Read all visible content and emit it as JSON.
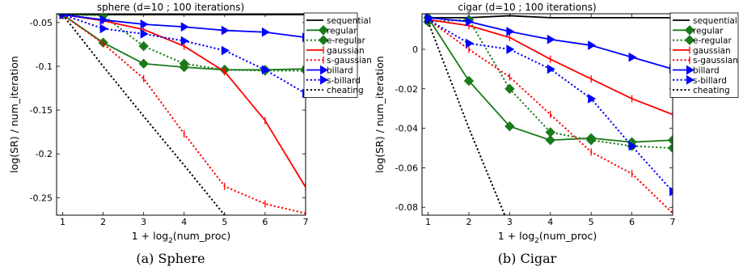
{
  "chart_data": [
    {
      "type": "line",
      "title": "sphere (d=10 ; 100 iterations)",
      "xlabel_prefix": "1 + log",
      "xlabel_sub": "2",
      "xlabel_suffix": "(num_proc)",
      "ylabel": "log(SR) / num_iteration",
      "caption": "(a) Sphere",
      "xlim": [
        0.85,
        7
      ],
      "ylim": [
        -0.27,
        -0.04
      ],
      "xticks": [
        1,
        2,
        3,
        4,
        5,
        6,
        7
      ],
      "xtick_labels": [
        "1",
        "2",
        "3",
        "4",
        "5",
        "6",
        "7"
      ],
      "yticks": [
        -0.05,
        -0.1,
        -0.15,
        -0.2,
        -0.25
      ],
      "ytick_labels": [
        "-0.05",
        "-0.1",
        "-0.15",
        "-0.2",
        "-0.25"
      ],
      "legend_position": "top-right",
      "series": [
        {
          "name": "sequential",
          "color": "#000000",
          "dash": "solid",
          "marker": "none",
          "x": [
            1,
            2,
            3,
            4,
            5,
            6,
            7
          ],
          "y": [
            -0.041,
            -0.041,
            -0.041,
            -0.041,
            -0.041,
            -0.041,
            -0.041
          ]
        },
        {
          "name": "regular",
          "color": "#1a7a1a",
          "dash": "solid",
          "marker": "diamond",
          "x": [
            1,
            2,
            3,
            4,
            5,
            6,
            7
          ],
          "y": [
            -0.041,
            -0.073,
            -0.097,
            -0.101,
            -0.104,
            -0.104,
            -0.103
          ]
        },
        {
          "name": "e-regular",
          "color": "#1a7a1a",
          "dash": "dotted",
          "marker": "diamond",
          "x": [
            1,
            2,
            3,
            4,
            5,
            6,
            7
          ],
          "y": [
            -0.041,
            -0.042,
            -0.077,
            -0.097,
            -0.104,
            -0.105,
            -0.105
          ]
        },
        {
          "name": "gaussian",
          "color": "#ff0000",
          "dash": "solid",
          "marker": "tick",
          "x": [
            1,
            2,
            3,
            4,
            5,
            6,
            7
          ],
          "y": [
            -0.041,
            -0.048,
            -0.058,
            -0.077,
            -0.106,
            -0.162,
            -0.238
          ]
        },
        {
          "name": "s-gaussian",
          "color": "#ff0000",
          "dash": "dotted",
          "marker": "tick",
          "x": [
            1,
            2,
            3,
            4,
            5,
            6,
            7
          ],
          "y": [
            -0.041,
            -0.074,
            -0.114,
            -0.177,
            -0.237,
            -0.257,
            -0.268
          ]
        },
        {
          "name": "billard",
          "color": "#0000ff",
          "dash": "solid",
          "marker": "triangle",
          "x": [
            1,
            2,
            3,
            4,
            5,
            6,
            7
          ],
          "y": [
            -0.041,
            -0.047,
            -0.052,
            -0.055,
            -0.059,
            -0.061,
            -0.067
          ]
        },
        {
          "name": "s-billard",
          "color": "#0000ff",
          "dash": "dotted",
          "marker": "triangle",
          "x": [
            1,
            2,
            3,
            4,
            5,
            6,
            7
          ],
          "y": [
            -0.041,
            -0.057,
            -0.063,
            -0.071,
            -0.082,
            -0.104,
            -0.131
          ]
        },
        {
          "name": "cheating",
          "color": "#000000",
          "dash": "dotted",
          "marker": "none",
          "x": [
            1,
            2,
            3,
            4,
            5
          ],
          "y": [
            -0.041,
            -0.1,
            -0.157,
            -0.213,
            -0.27
          ]
        }
      ]
    },
    {
      "type": "line",
      "title": "cigar (d=10 ; 100 iterations)",
      "xlabel_prefix": "1 + log",
      "xlabel_sub": "2",
      "xlabel_suffix": "(num_proc)",
      "ylabel": "log(SR) / num_iteration",
      "caption": "(b) Cigar",
      "xlim": [
        0.85,
        7
      ],
      "ylim": [
        -0.084,
        0.018
      ],
      "xticks": [
        1,
        2,
        3,
        4,
        5,
        6,
        7
      ],
      "xtick_labels": [
        "1",
        "2",
        "3",
        "4",
        "5",
        "6",
        "7"
      ],
      "yticks": [
        0,
        -0.02,
        -0.04,
        -0.06,
        -0.08
      ],
      "ytick_labels": [
        "0",
        "-0.02",
        "-0.04",
        "-0.06",
        "-0.08"
      ],
      "legend_position": "top-right",
      "series": [
        {
          "name": "sequential",
          "color": "#000000",
          "dash": "solid",
          "marker": "none",
          "x": [
            1,
            2,
            3,
            4,
            5,
            6,
            7
          ],
          "y": [
            0.016,
            0.016,
            0.017,
            0.016,
            0.016,
            0.016,
            0.016
          ]
        },
        {
          "name": "regular",
          "color": "#1a7a1a",
          "dash": "solid",
          "marker": "diamond",
          "x": [
            1,
            2,
            3,
            4,
            5,
            6,
            7
          ],
          "y": [
            0.016,
            -0.016,
            -0.039,
            -0.046,
            -0.045,
            -0.047,
            -0.046
          ]
        },
        {
          "name": "e-regular",
          "color": "#1a7a1a",
          "dash": "dotted",
          "marker": "diamond",
          "x": [
            1,
            2,
            3,
            4,
            5,
            6,
            7
          ],
          "y": [
            0.014,
            0.015,
            -0.02,
            -0.042,
            -0.046,
            -0.049,
            -0.05
          ]
        },
        {
          "name": "gaussian",
          "color": "#ff0000",
          "dash": "solid",
          "marker": "tick",
          "x": [
            1,
            2,
            3,
            4,
            5,
            6,
            7
          ],
          "y": [
            0.015,
            0.012,
            0.006,
            -0.005,
            -0.015,
            -0.025,
            -0.033
          ]
        },
        {
          "name": "s-gaussian",
          "color": "#ff0000",
          "dash": "dotted",
          "marker": "tick",
          "x": [
            1,
            2,
            3,
            4,
            5,
            6,
            7
          ],
          "y": [
            0.015,
            0.0,
            -0.014,
            -0.033,
            -0.052,
            -0.063,
            -0.083
          ]
        },
        {
          "name": "billard",
          "color": "#0000ff",
          "dash": "solid",
          "marker": "triangle",
          "x": [
            1,
            2,
            3,
            4,
            5,
            6,
            7
          ],
          "y": [
            0.016,
            0.014,
            0.009,
            0.005,
            0.002,
            -0.004,
            -0.01
          ]
        },
        {
          "name": "s-billard",
          "color": "#0000ff",
          "dash": "dotted",
          "marker": "triangle",
          "x": [
            1,
            2,
            3,
            4,
            5,
            6,
            7
          ],
          "y": [
            0.015,
            0.003,
            0.0,
            -0.01,
            -0.025,
            -0.049,
            -0.072
          ]
        },
        {
          "name": "cheating",
          "color": "#000000",
          "dash": "dotted",
          "marker": "none",
          "x": [
            1,
            2,
            3
          ],
          "y": [
            0.014,
            -0.04,
            -0.09
          ]
        }
      ]
    }
  ]
}
